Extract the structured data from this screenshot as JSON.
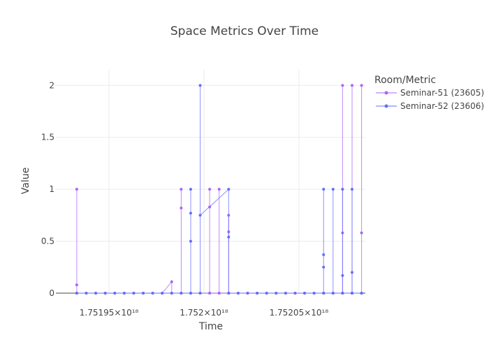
{
  "chart_data": {
    "type": "line",
    "title": "Space Metrics Over Time",
    "xlabel": "Time",
    "ylabel": "Value",
    "ylim": [
      0,
      2.15
    ],
    "xlim": [
      1.751922e+18,
      1.752085e+18
    ],
    "x_ticks": [
      {
        "value": 1.75195e+18,
        "label": "1.75195×10¹⁸"
      },
      {
        "value": 1.752e+18,
        "label": "1.752×10¹⁸"
      },
      {
        "value": 1.75205e+18,
        "label": "1.75205×10¹⁸"
      }
    ],
    "y_ticks": [
      {
        "value": 0,
        "label": "0"
      },
      {
        "value": 0.5,
        "label": "0.5"
      },
      {
        "value": 1,
        "label": "1"
      },
      {
        "value": 1.5,
        "label": "1.5"
      },
      {
        "value": 2,
        "label": "2"
      }
    ],
    "grid": true,
    "legend": {
      "title": "Room/Metric",
      "placement": "top-right"
    },
    "series": [
      {
        "name": "Seminar-51 (23605)",
        "color": "#ab63fa",
        "points": [
          [
            1.751933e+18,
            0
          ],
          [
            1.751933e+18,
            1
          ],
          [
            1.751933e+18,
            0.08
          ],
          [
            1.751933e+18,
            0
          ],
          [
            1.751938e+18,
            0
          ],
          [
            1.751943e+18,
            0
          ],
          [
            1.751948e+18,
            0
          ],
          [
            1.751953e+18,
            0
          ],
          [
            1.751958e+18,
            0
          ],
          [
            1.751963e+18,
            0
          ],
          [
            1.751968e+18,
            0
          ],
          [
            1.751973e+18,
            0
          ],
          [
            1.751978e+18,
            0
          ],
          [
            1.751983e+18,
            0.11
          ],
          [
            1.751983e+18,
            0
          ],
          [
            1.751988e+18,
            0
          ],
          [
            1.751988e+18,
            1
          ],
          [
            1.751988e+18,
            0.82
          ],
          [
            1.751988e+18,
            0
          ],
          [
            1.751978e+18,
            0
          ],
          [
            1.751998e+18,
            0
          ],
          [
            1.752003e+18,
            0
          ],
          [
            1.752003e+18,
            1
          ],
          [
            1.752003e+18,
            0.83
          ],
          [
            1.752003e+18,
            0
          ],
          [
            1.752008e+18,
            0
          ],
          [
            1.752008e+18,
            1
          ],
          [
            1.752008e+18,
            0
          ],
          [
            1.752013e+18,
            0
          ],
          [
            1.752013e+18,
            0.75
          ],
          [
            1.752013e+18,
            0.59
          ],
          [
            1.752013e+18,
            0
          ],
          [
            1.752018e+18,
            0
          ],
          [
            1.752023e+18,
            0
          ],
          [
            1.752028e+18,
            0
          ],
          [
            1.752033e+18,
            0
          ],
          [
            1.752038e+18,
            0
          ],
          [
            1.752043e+18,
            0
          ],
          [
            1.752048e+18,
            0
          ],
          [
            1.752053e+18,
            0
          ],
          [
            1.752058e+18,
            0
          ],
          [
            1.752063e+18,
            0
          ],
          [
            1.752068e+18,
            0
          ],
          [
            1.752073e+18,
            0
          ],
          [
            1.752073e+18,
            0.58
          ],
          [
            1.752073e+18,
            2
          ],
          [
            1.752073e+18,
            0
          ],
          [
            1.752078e+18,
            0
          ],
          [
            1.752078e+18,
            2
          ],
          [
            1.752078e+18,
            0
          ],
          [
            1.752083e+18,
            0
          ],
          [
            1.752083e+18,
            2
          ],
          [
            1.752083e+18,
            0.58
          ],
          [
            1.752083e+18,
            0
          ]
        ]
      },
      {
        "name": "Seminar-52 (23606)",
        "color": "#636efa",
        "points": [
          [
            1.751933e+18,
            0
          ],
          [
            1.751938e+18,
            0
          ],
          [
            1.751943e+18,
            0
          ],
          [
            1.751948e+18,
            0
          ],
          [
            1.751953e+18,
            0
          ],
          [
            1.751958e+18,
            0
          ],
          [
            1.751963e+18,
            0
          ],
          [
            1.751968e+18,
            0
          ],
          [
            1.751973e+18,
            0
          ],
          [
            1.751978e+18,
            0
          ],
          [
            1.751983e+18,
            0
          ],
          [
            1.751988e+18,
            0
          ],
          [
            1.751993e+18,
            0
          ],
          [
            1.751993e+18,
            1
          ],
          [
            1.751993e+18,
            0.77
          ],
          [
            1.751993e+18,
            0.5
          ],
          [
            1.751993e+18,
            0
          ],
          [
            1.751998e+18,
            0
          ],
          [
            1.751998e+18,
            2
          ],
          [
            1.751998e+18,
            0.75
          ],
          [
            1.752013e+18,
            1
          ],
          [
            1.752013e+18,
            0.54
          ],
          [
            1.752013e+18,
            0
          ],
          [
            1.752018e+18,
            0
          ],
          [
            1.752023e+18,
            0
          ],
          [
            1.752028e+18,
            0
          ],
          [
            1.752033e+18,
            0
          ],
          [
            1.752038e+18,
            0
          ],
          [
            1.752043e+18,
            0
          ],
          [
            1.752048e+18,
            0
          ],
          [
            1.752053e+18,
            0
          ],
          [
            1.752058e+18,
            0
          ],
          [
            1.752063e+18,
            0
          ],
          [
            1.752063e+18,
            0.25
          ],
          [
            1.752063e+18,
            0.37
          ],
          [
            1.752063e+18,
            1
          ],
          [
            1.752063e+18,
            0
          ],
          [
            1.752068e+18,
            0
          ],
          [
            1.752068e+18,
            1
          ],
          [
            1.752068e+18,
            0
          ],
          [
            1.752073e+18,
            0
          ],
          [
            1.752073e+18,
            1
          ],
          [
            1.752073e+18,
            0.17
          ],
          [
            1.752073e+18,
            0
          ],
          [
            1.752078e+18,
            0
          ],
          [
            1.752078e+18,
            1
          ],
          [
            1.752078e+18,
            0.2
          ],
          [
            1.752078e+18,
            0
          ],
          [
            1.752083e+18,
            0
          ]
        ]
      }
    ]
  }
}
